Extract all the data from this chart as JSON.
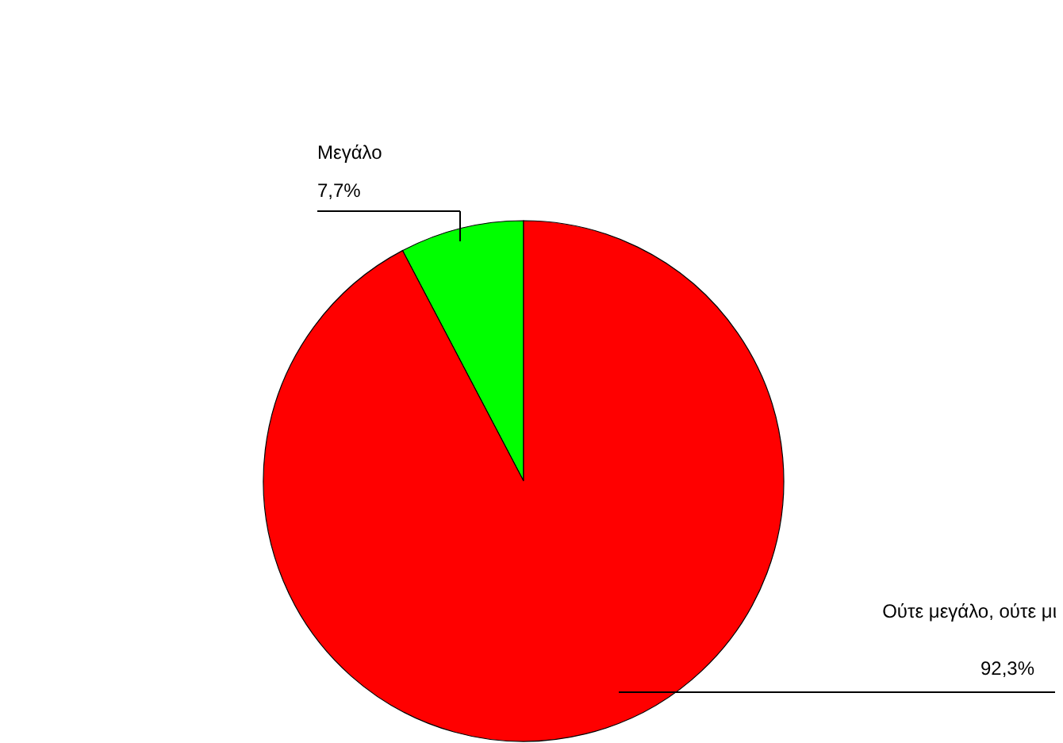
{
  "chart_data": {
    "type": "pie",
    "categories": [
      "Μεγάλο",
      "Ούτε μεγάλο, ούτε μι"
    ],
    "values": [
      7.7,
      92.3
    ],
    "colors": [
      "#00ff00",
      "#ff0000"
    ],
    "value_labels": [
      "7,7%",
      "92,3%"
    ]
  }
}
